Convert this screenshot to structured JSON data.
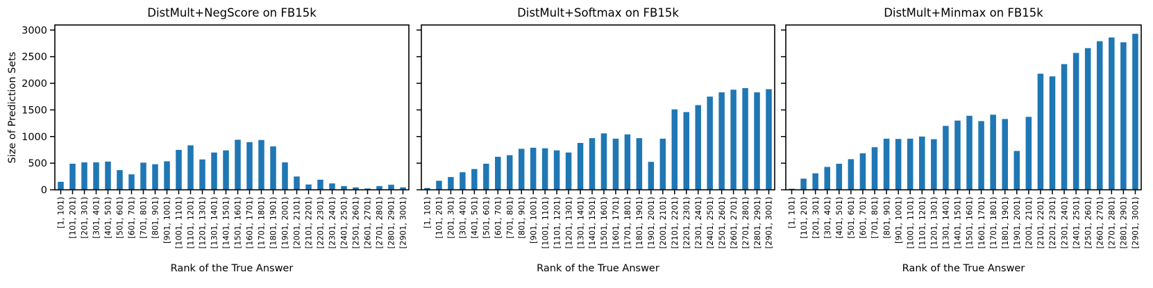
{
  "figure": {
    "background_color": "#ffffff",
    "bar_color": "#1f77b4",
    "axis_color": "#000000"
  },
  "y_axis": {
    "label": "Size of Prediction Sets",
    "ticks": [
      0,
      500,
      1000,
      1500,
      2000,
      2500,
      3000
    ],
    "max": 3095
  },
  "x_axis": {
    "label": "Rank of the True Answer"
  },
  "chart_data": [
    {
      "type": "bar",
      "title": "DistMult+NegScore on FB15k",
      "xlabel": "Rank of the True Answer",
      "ylabel": "Size of Prediction Sets",
      "ylim": [
        0,
        3095
      ],
      "grid": false,
      "legend": "none",
      "categories": [
        "[1, 101)",
        "[101, 201)",
        "[201, 301)",
        "[301, 401)",
        "[401, 501)",
        "[501, 601)",
        "[601, 701)",
        "[701, 801)",
        "[801, 901)",
        "[901, 1001)",
        "[1001, 1101)",
        "[1101, 1201)",
        "[1201, 1301)",
        "[1301, 1401)",
        "[1401, 1501)",
        "[1501, 1601)",
        "[1601, 1701)",
        "[1701, 1801)",
        "[1801, 1901)",
        "[1901, 2001)",
        "[2001, 2101)",
        "[2101, 2201)",
        "[2201, 2301)",
        "[2301, 2401)",
        "[2401, 2501)",
        "[2501, 2601)",
        "[2601, 2701)",
        "[2701, 2801)",
        "[2801, 2901)",
        "[2901, 3001)"
      ],
      "values": [
        150,
        490,
        515,
        515,
        530,
        370,
        290,
        510,
        480,
        535,
        750,
        835,
        570,
        700,
        740,
        940,
        895,
        935,
        815,
        515,
        250,
        100,
        190,
        120,
        70,
        45,
        25,
        70,
        95,
        45
      ]
    },
    {
      "type": "bar",
      "title": "DistMult+Softmax on FB15k",
      "xlabel": "Rank of the True Answer",
      "ylim": [
        0,
        3095
      ],
      "grid": false,
      "legend": "none",
      "categories": [
        "[1, 101)",
        "[101, 201)",
        "[201, 301)",
        "[301, 401)",
        "[401, 501)",
        "[501, 601)",
        "[601, 701)",
        "[701, 801)",
        "[801, 901)",
        "[901, 1001)",
        "[1001, 1101)",
        "[1101, 1201)",
        "[1201, 1301)",
        "[1301, 1401)",
        "[1401, 1501)",
        "[1501, 1601)",
        "[1601, 1701)",
        "[1701, 1801)",
        "[1801, 1901)",
        "[1901, 2001)",
        "[2001, 2101)",
        "[2101, 2201)",
        "[2201, 2301)",
        "[2301, 2401)",
        "[2401, 2501)",
        "[2501, 2601)",
        "[2601, 2701)",
        "[2701, 2801)",
        "[2801, 2901)",
        "[2901, 3001)"
      ],
      "values": [
        35,
        170,
        240,
        330,
        390,
        490,
        620,
        650,
        770,
        790,
        780,
        740,
        700,
        880,
        970,
        1060,
        960,
        1040,
        970,
        525,
        960,
        1510,
        1460,
        1590,
        1750,
        1830,
        1880,
        1910,
        1830,
        1890
      ]
    },
    {
      "type": "bar",
      "title": "DistMult+Minmax on FB15k",
      "xlabel": "Rank of the True Answer",
      "ylim": [
        0,
        3095
      ],
      "grid": false,
      "legend": "none",
      "categories": [
        "[1, 101)",
        "[101, 201)",
        "[201, 301)",
        "[301, 401)",
        "[401, 501)",
        "[501, 601)",
        "[601, 701)",
        "[701, 801)",
        "[801, 901)",
        "[901, 1001)",
        "[1001, 1101)",
        "[1101, 1201)",
        "[1201, 1301)",
        "[1301, 1401)",
        "[1401, 1501)",
        "[1501, 1601)",
        "[1601, 1701)",
        "[1701, 1801)",
        "[1801, 1901)",
        "[1901, 2001)",
        "[2001, 2101)",
        "[2101, 2201)",
        "[2201, 2301)",
        "[2301, 2401)",
        "[2401, 2501)",
        "[2501, 2601)",
        "[2601, 2701)",
        "[2701, 2801)",
        "[2801, 2901)",
        "[2901, 3001)"
      ],
      "values": [
        20,
        210,
        310,
        430,
        490,
        575,
        685,
        800,
        960,
        955,
        960,
        1000,
        950,
        1200,
        1300,
        1390,
        1290,
        1410,
        1330,
        730,
        1370,
        2180,
        2130,
        2360,
        2570,
        2660,
        2790,
        2860,
        2770,
        2930
      ]
    }
  ]
}
